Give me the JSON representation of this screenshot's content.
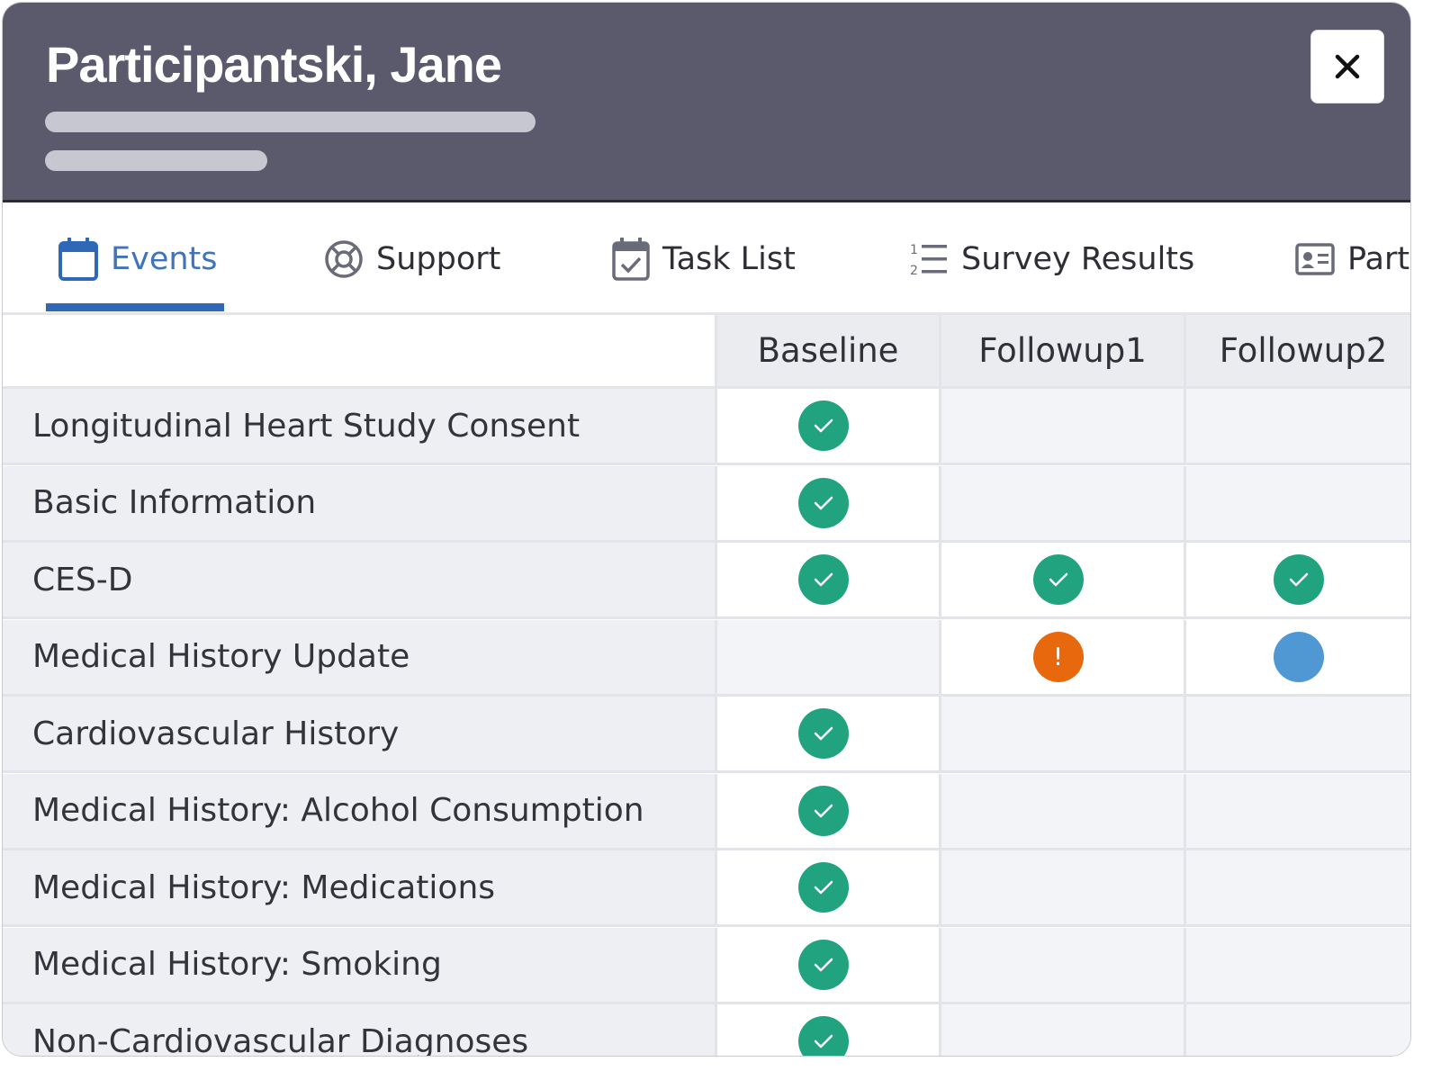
{
  "header": {
    "title": "Participantski, Jane",
    "close_label": "×"
  },
  "tabs": [
    {
      "label": "Events",
      "icon": "calendar-icon",
      "active": true
    },
    {
      "label": "Support",
      "icon": "lifebuoy-icon",
      "active": false
    },
    {
      "label": "Task List",
      "icon": "calendar-check-icon",
      "active": false
    },
    {
      "label": "Survey Results",
      "icon": "numbered-list-icon",
      "active": false
    },
    {
      "label": "Parti",
      "icon": "id-card-icon",
      "active": false
    }
  ],
  "columns": [
    "Baseline",
    "Followup1",
    "Followup2"
  ],
  "rows": [
    {
      "name": "Longitudinal Heart Study Consent",
      "status": [
        "complete",
        null,
        null
      ],
      "warning": ""
    },
    {
      "name": "Basic Information",
      "status": [
        "complete",
        null,
        null
      ],
      "warning": ""
    },
    {
      "name": "CES-D",
      "status": [
        "complete",
        "complete",
        "complete"
      ],
      "warning": ""
    },
    {
      "name": "Medical History Update",
      "status": [
        null,
        "warning",
        "scheduled"
      ],
      "warning": "!"
    },
    {
      "name": "Cardiovascular History",
      "status": [
        "complete",
        null,
        null
      ],
      "warning": ""
    },
    {
      "name": "Medical History: Alcohol Consumption",
      "status": [
        "complete",
        null,
        null
      ],
      "warning": ""
    },
    {
      "name": "Medical History: Medications",
      "status": [
        "complete",
        null,
        null
      ],
      "warning": ""
    },
    {
      "name": "Medical History: Smoking",
      "status": [
        "complete",
        null,
        null
      ],
      "warning": ""
    },
    {
      "name": "Non-Cardiovascular Diagnoses",
      "status": [
        "complete",
        null,
        null
      ],
      "warning": ""
    }
  ],
  "colors": {
    "header_bg": "#5b5a6c",
    "accent": "#2f68b7",
    "complete": "#22a37f",
    "warning": "#e8690d",
    "scheduled": "#4f98d4"
  }
}
